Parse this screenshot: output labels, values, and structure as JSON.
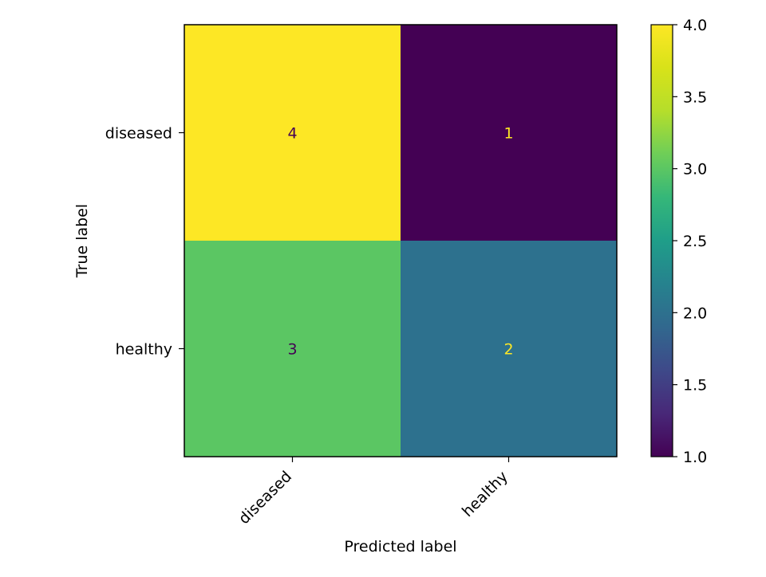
{
  "chart_data": {
    "type": "heatmap",
    "title": "",
    "xlabel": "Predicted label",
    "ylabel": "True label",
    "x_categories": [
      "diseased",
      "healthy"
    ],
    "y_categories": [
      "diseased",
      "healthy"
    ],
    "values": [
      [
        4,
        1
      ],
      [
        3,
        2
      ]
    ],
    "cell_text": [
      [
        "4",
        "1"
      ],
      [
        "3",
        "2"
      ]
    ],
    "colorbar": {
      "min": 1.0,
      "max": 4.0,
      "ticks": [
        1.0,
        1.5,
        2.0,
        2.5,
        3.0,
        3.5,
        4.0
      ],
      "tick_labels": [
        "1.0",
        "1.5",
        "2.0",
        "2.5",
        "3.0",
        "3.5",
        "4.0"
      ],
      "colormap": "viridis"
    },
    "text_colors": {
      "light_bg": "#440154",
      "dark_bg": "#fde725"
    },
    "colors": {
      "axis": "#000000",
      "background": "#ffffff"
    }
  }
}
